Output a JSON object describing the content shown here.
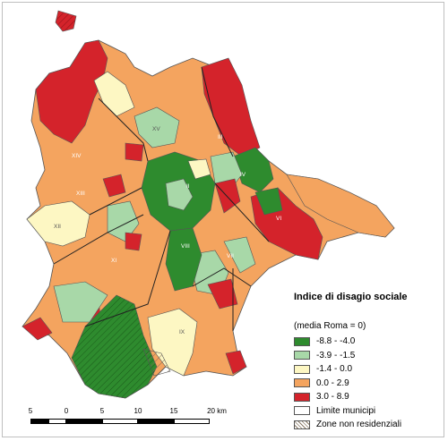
{
  "legend": {
    "title": "Indice di disagio sociale",
    "subtitle": "(media Roma = 0)",
    "classes": [
      {
        "label": "-8.8 - -4.0",
        "color": "#2e8b2e"
      },
      {
        "label": "-3.9 - -1.5",
        "color": "#a8d8a8"
      },
      {
        "label": "-1.4 - 0.0",
        "color": "#fdf7c3"
      },
      {
        "label": "0.0 - 2.9",
        "color": "#f4a45f"
      },
      {
        "label": "3.0 - 8.9",
        "color": "#d4232b"
      }
    ],
    "boundary_label": "Limite municipi",
    "nonres_label": "Zone non residenziali"
  },
  "scale": {
    "ticks": [
      "5",
      "0",
      "5",
      "10",
      "15",
      "20 km"
    ]
  },
  "municipi": [
    "II",
    "III",
    "IV",
    "VI",
    "VII",
    "VIII",
    "IX",
    "XI",
    "XII",
    "XIII",
    "XIV",
    "XV"
  ]
}
